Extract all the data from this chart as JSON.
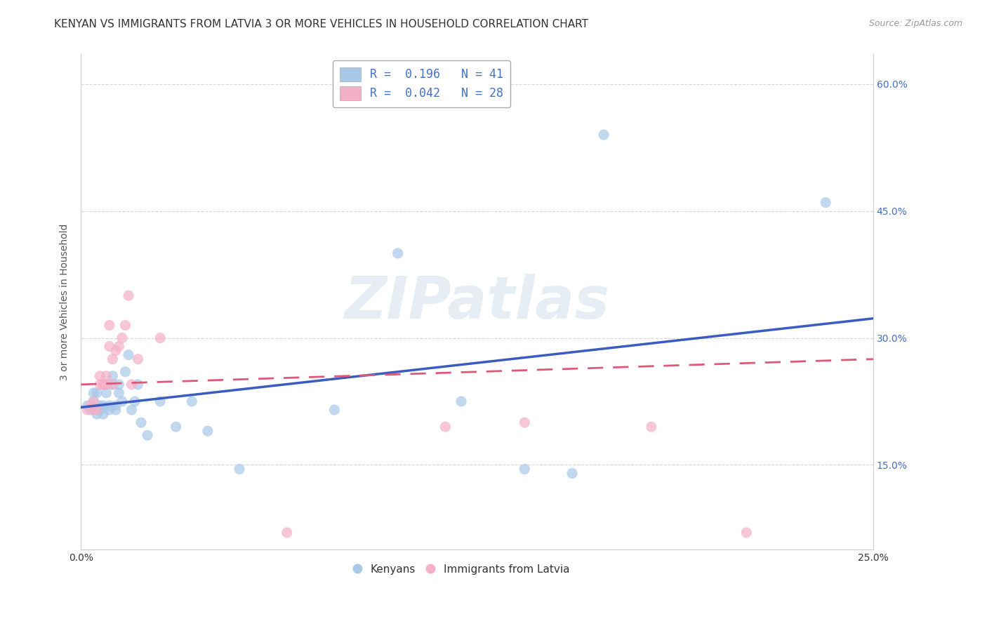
{
  "title": "KENYAN VS IMMIGRANTS FROM LATVIA 3 OR MORE VEHICLES IN HOUSEHOLD CORRELATION CHART",
  "source": "Source: ZipAtlas.com",
  "ylabel": "3 or more Vehicles in Household",
  "watermark": "ZIPatlas",
  "legend_items": [
    {
      "label": "R =  0.196   N = 41",
      "color": "#a8c8e8"
    },
    {
      "label": "R =  0.042   N = 28",
      "color": "#f4b0c8"
    }
  ],
  "legend_labels_bottom": [
    "Kenyans",
    "Immigrants from Latvia"
  ],
  "xlim": [
    0.0,
    0.25
  ],
  "ylim": [
    0.05,
    0.635
  ],
  "y_ticks": [
    0.15,
    0.3,
    0.45,
    0.6
  ],
  "y_tick_labels": [
    "15.0%",
    "30.0%",
    "45.0%",
    "60.0%"
  ],
  "blue_color": "#a8c8e8",
  "pink_color": "#f4b0c8",
  "blue_line_color": "#3a5bbf",
  "pink_line_color": "#e05878",
  "blue_scatter": {
    "x": [
      0.002,
      0.003,
      0.004,
      0.004,
      0.005,
      0.005,
      0.005,
      0.006,
      0.006,
      0.007,
      0.007,
      0.008,
      0.008,
      0.009,
      0.009,
      0.01,
      0.01,
      0.011,
      0.011,
      0.012,
      0.012,
      0.013,
      0.014,
      0.015,
      0.016,
      0.017,
      0.018,
      0.019,
      0.021,
      0.025,
      0.03,
      0.035,
      0.04,
      0.05,
      0.08,
      0.1,
      0.12,
      0.14,
      0.155,
      0.165,
      0.235
    ],
    "y": [
      0.22,
      0.215,
      0.235,
      0.225,
      0.21,
      0.235,
      0.215,
      0.22,
      0.215,
      0.21,
      0.22,
      0.235,
      0.245,
      0.22,
      0.215,
      0.255,
      0.245,
      0.22,
      0.215,
      0.245,
      0.235,
      0.225,
      0.26,
      0.28,
      0.215,
      0.225,
      0.245,
      0.2,
      0.185,
      0.225,
      0.195,
      0.225,
      0.19,
      0.145,
      0.215,
      0.4,
      0.225,
      0.145,
      0.14,
      0.54,
      0.46
    ]
  },
  "pink_scatter": {
    "x": [
      0.002,
      0.003,
      0.004,
      0.004,
      0.005,
      0.006,
      0.006,
      0.007,
      0.007,
      0.008,
      0.008,
      0.009,
      0.009,
      0.01,
      0.01,
      0.011,
      0.012,
      0.013,
      0.014,
      0.015,
      0.016,
      0.018,
      0.025,
      0.065,
      0.115,
      0.14,
      0.18,
      0.21
    ],
    "y": [
      0.215,
      0.22,
      0.215,
      0.225,
      0.215,
      0.245,
      0.255,
      0.245,
      0.245,
      0.255,
      0.245,
      0.29,
      0.315,
      0.245,
      0.275,
      0.285,
      0.29,
      0.3,
      0.315,
      0.35,
      0.245,
      0.275,
      0.3,
      0.07,
      0.195,
      0.2,
      0.195,
      0.07
    ]
  },
  "blue_reg": {
    "intercept": 0.218,
    "slope": 0.42
  },
  "pink_reg": {
    "intercept": 0.245,
    "slope": 0.12
  },
  "background_color": "#ffffff",
  "grid_color": "#cccccc",
  "title_fontsize": 11,
  "axis_fontsize": 10,
  "tick_fontsize": 10,
  "watermark_fontsize": 60,
  "watermark_color": "#c8d8e8",
  "watermark_alpha": 0.45
}
